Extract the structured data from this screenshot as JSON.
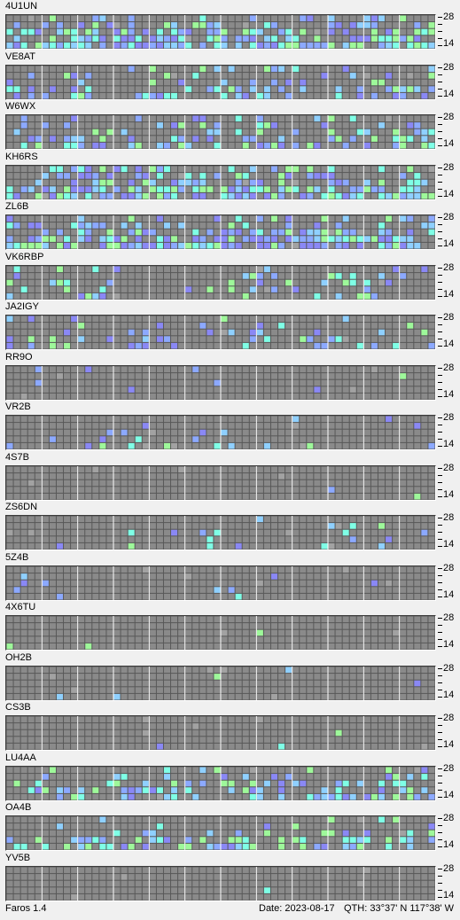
{
  "app": {
    "name": "Faros 1.4"
  },
  "status": {
    "date": "Date: 2023-08-17",
    "qth": "QTH: 33°37' N  117°38' W"
  },
  "bands": {
    "top": "28",
    "bottom": "14",
    "dash": "-"
  },
  "colors": {
    "empty": "#8a8a8a",
    "grey_signal": "#a2a2a2",
    "cyan": "#7fffe6",
    "light_blue": "#8fd0ff",
    "blue": "#8ca9ff",
    "violet": "#8a88f5",
    "green": "#9ef89a",
    "minor_grid": "#585858",
    "major_grid": "#ffffff"
  },
  "grid": {
    "rows": 5,
    "cols": 60
  },
  "beacons": [
    {
      "name": "4U1UN",
      "activity": 0.55
    },
    {
      "name": "VE8AT",
      "activity": 0.25
    },
    {
      "name": "W6WX",
      "activity": 0.3
    },
    {
      "name": "KH6RS",
      "activity": 0.5
    },
    {
      "name": "ZL6B",
      "activity": 0.5
    },
    {
      "name": "VK6RBP",
      "activity": 0.18
    },
    {
      "name": "JA2IGY",
      "activity": 0.18
    },
    {
      "name": "RR9O",
      "activity": 0.02
    },
    {
      "name": "VR2B",
      "activity": 0.08
    },
    {
      "name": "4S7B",
      "activity": 0.02
    },
    {
      "name": "ZS6DN",
      "activity": 0.05
    },
    {
      "name": "5Z4B",
      "activity": 0.02
    },
    {
      "name": "4X6TU",
      "activity": 0.01
    },
    {
      "name": "OH2B",
      "activity": 0.02
    },
    {
      "name": "CS3B",
      "activity": 0.01
    },
    {
      "name": "LU4AA",
      "activity": 0.3
    },
    {
      "name": "OA4B",
      "activity": 0.25
    },
    {
      "name": "YV5B",
      "activity": 0.01
    }
  ]
}
